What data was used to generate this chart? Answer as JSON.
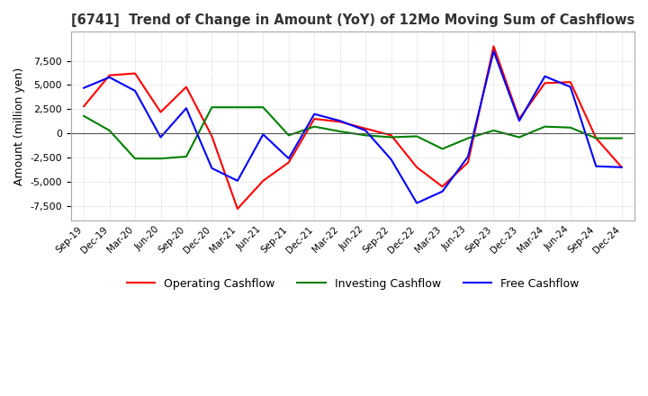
{
  "title": "[6741]  Trend of Change in Amount (YoY) of 12Mo Moving Sum of Cashflows",
  "ylabel": "Amount (million yen)",
  "ylim": [
    -9000,
    10500
  ],
  "yticks": [
    -7500,
    -5000,
    -2500,
    0,
    2500,
    5000,
    7500
  ],
  "labels": [
    "Sep-19",
    "Dec-19",
    "Mar-20",
    "Jun-20",
    "Sep-20",
    "Dec-20",
    "Mar-21",
    "Jun-21",
    "Sep-21",
    "Dec-21",
    "Mar-22",
    "Jun-22",
    "Sep-22",
    "Dec-22",
    "Mar-23",
    "Jun-23",
    "Sep-23",
    "Dec-23",
    "Mar-24",
    "Jun-24",
    "Sep-24",
    "Dec-24"
  ],
  "operating": [
    2800,
    6000,
    6200,
    2200,
    4800,
    -300,
    -7800,
    -4900,
    -3000,
    1500,
    1200,
    500,
    -200,
    -3500,
    -5500,
    -3000,
    9000,
    1500,
    5200,
    5300,
    -500,
    -3500
  ],
  "investing": [
    1800,
    300,
    -2600,
    -2600,
    -2400,
    2700,
    2700,
    2700,
    -200,
    700,
    200,
    -200,
    -400,
    -300,
    -1600,
    -500,
    300,
    -400,
    700,
    600,
    -500,
    -500
  ],
  "free": [
    4700,
    5800,
    4400,
    -400,
    2600,
    -3600,
    -4900,
    -100,
    -2600,
    2000,
    1300,
    300,
    -2700,
    -7200,
    -6000,
    -2400,
    8500,
    1300,
    5900,
    4800,
    -3400,
    -3500
  ],
  "line_colors": {
    "operating": "#ff0000",
    "investing": "#008000",
    "free": "#0000ff"
  },
  "background_color": "#ffffff",
  "grid_color": "#bbbbbb",
  "title_color": "#333333",
  "legend_labels": [
    "Operating Cashflow",
    "Investing Cashflow",
    "Free Cashflow"
  ]
}
